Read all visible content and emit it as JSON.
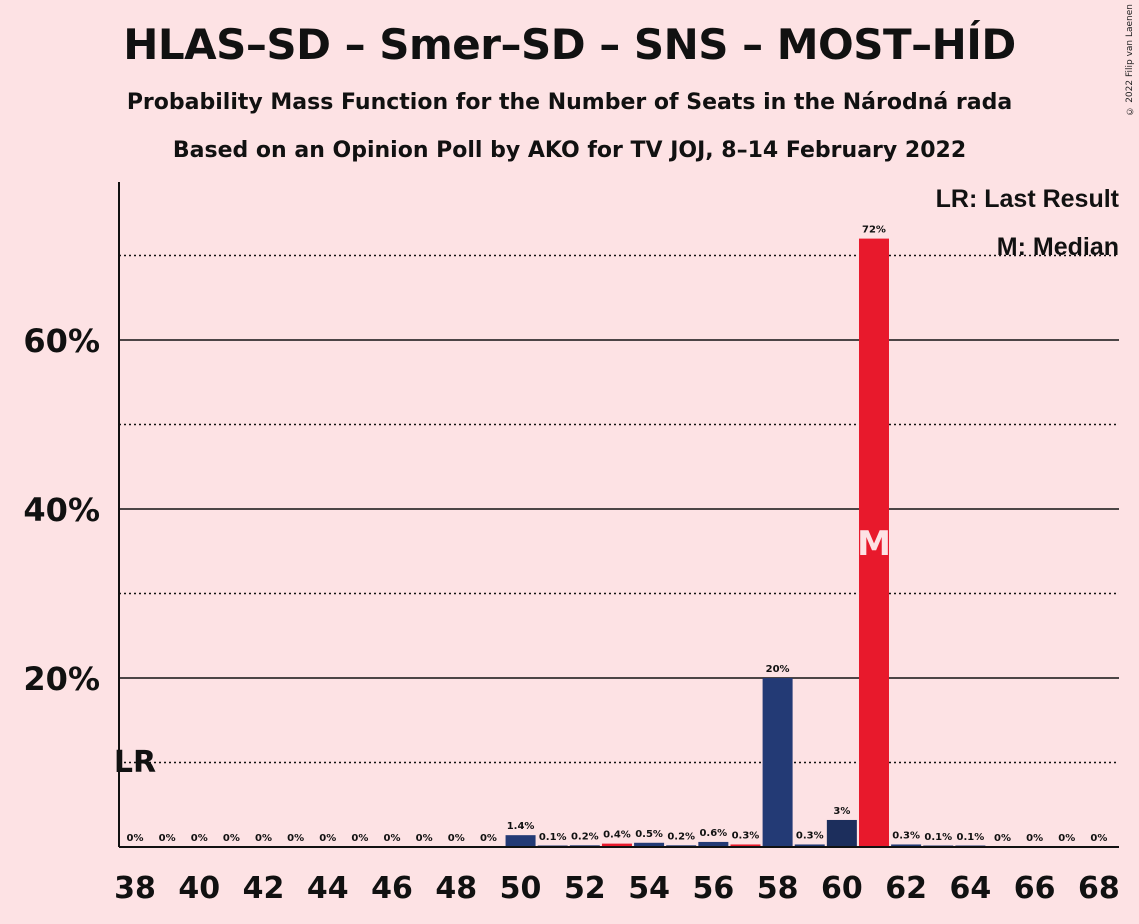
{
  "title": "HLAS–SD – Smer–SD – SNS – MOST–HÍD",
  "subtitle1": "Probability Mass Function for the Number of Seats in the Národná rada",
  "subtitle2": "Based on an Opinion Poll by AKO for TV JOJ, 8–14 February 2022",
  "copyright": "© 2022 Filip van Laenen",
  "legend": {
    "last_result": "LR: Last Result",
    "median": "M: Median"
  },
  "colors": {
    "background": "#FDE2E4",
    "bar_primary": "#233A75",
    "bar_secondary": "#1C2E5C",
    "bar_median": "#E8192C",
    "bar_highlight": "#E8192C"
  },
  "chart_data": {
    "type": "bar",
    "ylim": [
      0,
      78
    ],
    "yticks": [
      20,
      40,
      60
    ],
    "ytick_labels": [
      "20%",
      "40%",
      "60%"
    ],
    "minor_grid": [
      10,
      30,
      50,
      70
    ],
    "x": [
      38,
      39,
      40,
      41,
      42,
      43,
      44,
      45,
      46,
      47,
      48,
      49,
      50,
      51,
      52,
      53,
      54,
      55,
      56,
      57,
      58,
      59,
      60,
      61,
      62,
      63,
      64,
      65,
      66,
      67,
      68
    ],
    "xtick_labels": [
      "38",
      "40",
      "42",
      "44",
      "46",
      "48",
      "50",
      "52",
      "54",
      "56",
      "58",
      "60",
      "62",
      "64",
      "66",
      "68"
    ],
    "values": [
      0,
      0,
      0,
      0,
      0,
      0,
      0,
      0,
      0,
      0,
      0,
      0,
      1.4,
      0.1,
      0.2,
      0.4,
      0.5,
      0.2,
      0.6,
      0.3,
      20,
      0.3,
      3.2,
      72,
      0.3,
      0.1,
      0.1,
      0,
      0,
      0,
      0
    ],
    "labels": [
      "0%",
      "0%",
      "0%",
      "0%",
      "0%",
      "0%",
      "0%",
      "0%",
      "0%",
      "0%",
      "0%",
      "0%",
      "1.4%",
      "0.1%",
      "0.2%",
      "0.4%",
      "0.5%",
      "0.2%",
      "0.6%",
      "0.3%",
      "20%",
      "0.3%",
      "3%",
      "72%",
      "0.3%",
      "0.1%",
      "0.1%",
      "0%",
      "0%",
      "0%",
      "0%"
    ],
    "last_result_seat": 38,
    "last_result_label": "LR",
    "median_seat": 61,
    "median_label": "M",
    "red_seats": [
      53,
      57,
      61
    ]
  }
}
